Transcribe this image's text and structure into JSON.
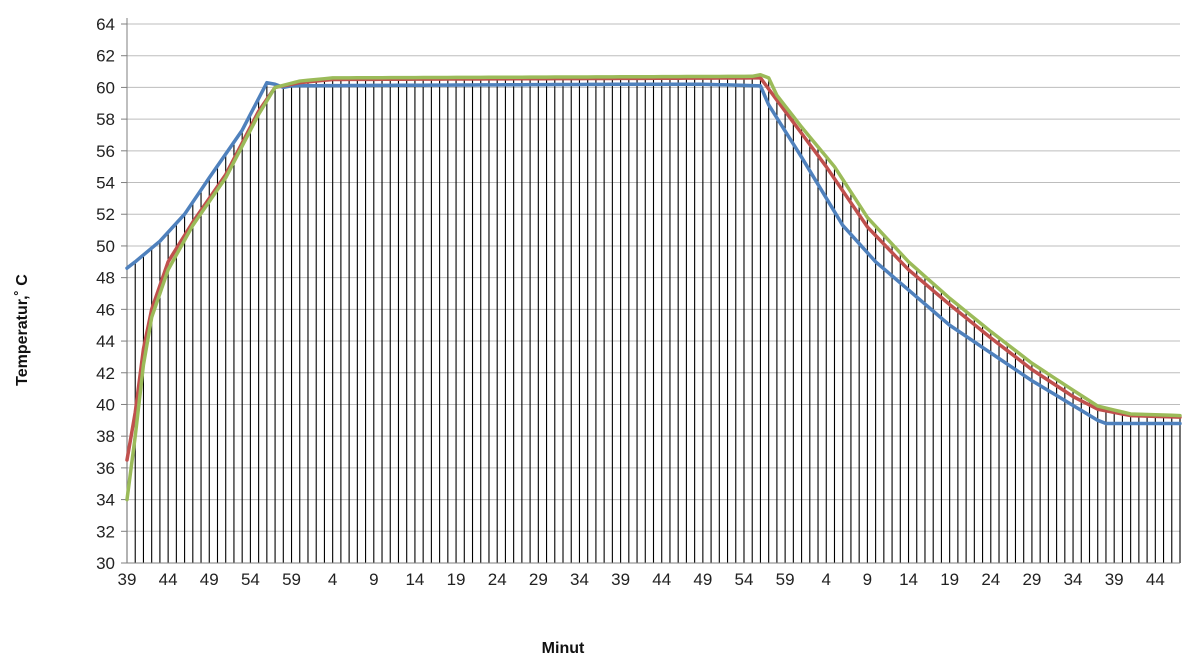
{
  "chart_data": {
    "type": "line",
    "title": "",
    "xlabel": "Minut",
    "ylabel": "Temperatur,˚ C",
    "ylim": [
      30,
      64
    ],
    "ytick_step": 2,
    "grid": "horizontal lines every 2; vertical drop-lines at every minute",
    "x_tick_labels": [
      "39",
      "44",
      "49",
      "54",
      "59",
      "4",
      "9",
      "14",
      "19",
      "24",
      "29",
      "34",
      "39",
      "44",
      "49",
      "54",
      "59",
      "4",
      "9",
      "14",
      "19",
      "24",
      "29",
      "34",
      "39",
      "44"
    ],
    "x_label_every": 5,
    "point_count": 129,
    "series": [
      {
        "color": "#4f81bd",
        "keypoints": [
          [
            0,
            48.6
          ],
          [
            1,
            49.0
          ],
          [
            4,
            50.3
          ],
          [
            7,
            52.0
          ],
          [
            10,
            54.3
          ],
          [
            14,
            57.3
          ],
          [
            17,
            60.3
          ],
          [
            18,
            60.2
          ],
          [
            19,
            60.0
          ],
          [
            20,
            60.1
          ],
          [
            60,
            60.2
          ],
          [
            70,
            60.2
          ],
          [
            77,
            60.1
          ],
          [
            78,
            58.9
          ],
          [
            82,
            55.6
          ],
          [
            87,
            51.3
          ],
          [
            91,
            49.0
          ],
          [
            100,
            45.0
          ],
          [
            110,
            41.5
          ],
          [
            118,
            39.0
          ],
          [
            119,
            38.8
          ],
          [
            128,
            38.8
          ]
        ]
      },
      {
        "color": "#c0504d",
        "keypoints": [
          [
            0,
            36.5
          ],
          [
            1,
            39.5
          ],
          [
            2,
            43.5
          ],
          [
            3,
            46.0
          ],
          [
            5,
            49.0
          ],
          [
            8,
            51.5
          ],
          [
            12,
            54.5
          ],
          [
            16,
            58.5
          ],
          [
            18,
            60.0
          ],
          [
            21,
            60.3
          ],
          [
            25,
            60.5
          ],
          [
            77,
            60.6
          ],
          [
            79,
            59.2
          ],
          [
            85,
            55.0
          ],
          [
            90,
            51.2
          ],
          [
            95,
            48.5
          ],
          [
            100,
            46.3
          ],
          [
            105,
            44.2
          ],
          [
            110,
            42.2
          ],
          [
            115,
            40.5
          ],
          [
            118,
            39.7
          ],
          [
            122,
            39.3
          ],
          [
            128,
            39.2
          ]
        ]
      },
      {
        "color": "#9bbb59",
        "keypoints": [
          [
            0,
            34.0
          ],
          [
            1,
            38.0
          ],
          [
            2,
            42.5
          ],
          [
            3,
            45.5
          ],
          [
            5,
            48.5
          ],
          [
            8,
            51.3
          ],
          [
            12,
            54.3
          ],
          [
            16,
            58.3
          ],
          [
            18,
            60.0
          ],
          [
            21,
            60.4
          ],
          [
            25,
            60.6
          ],
          [
            76,
            60.7
          ],
          [
            77,
            60.8
          ],
          [
            78,
            60.6
          ],
          [
            79,
            59.5
          ],
          [
            82,
            57.5
          ],
          [
            86,
            55.0
          ],
          [
            90,
            51.8
          ],
          [
            95,
            49.0
          ],
          [
            100,
            46.7
          ],
          [
            105,
            44.6
          ],
          [
            110,
            42.6
          ],
          [
            115,
            40.9
          ],
          [
            118,
            39.9
          ],
          [
            122,
            39.4
          ],
          [
            128,
            39.3
          ]
        ]
      }
    ]
  }
}
